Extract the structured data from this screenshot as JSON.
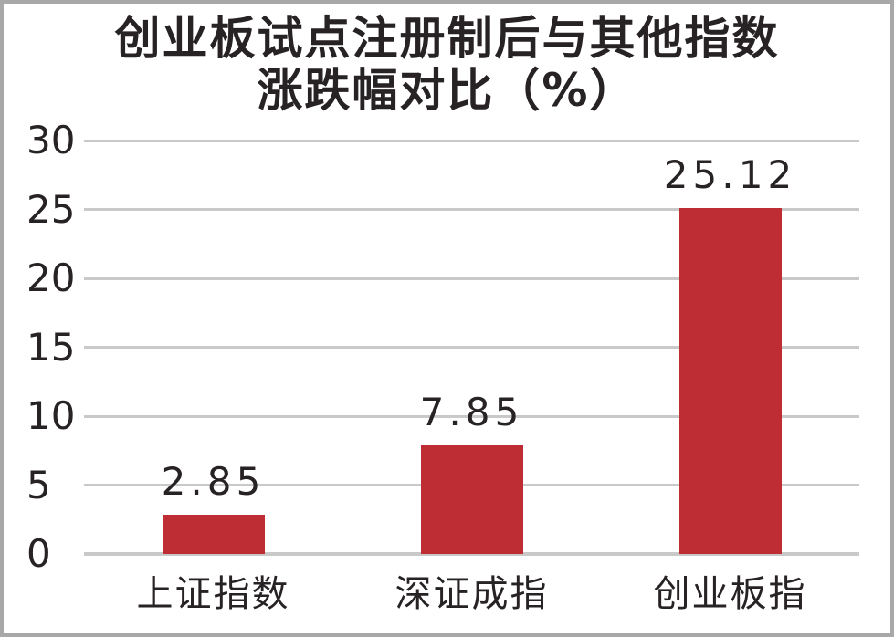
{
  "chart": {
    "title_line1": "创业板试点注册制后与其他指数",
    "title_line2": "涨跌幅对比（%）"
  },
  "chart_data": {
    "type": "bar",
    "title": "创业板试点注册制后与其他指数涨跌幅对比（%）",
    "categories": [
      "上证指数",
      "深证成指",
      "创业板指"
    ],
    "values": [
      2.85,
      7.85,
      25.12
    ],
    "value_labels": [
      "2.85",
      "7.85",
      "25.12"
    ],
    "xlabel": "",
    "ylabel": "",
    "ylim": [
      0,
      30
    ],
    "yticks": [
      0,
      5,
      10,
      15,
      20,
      25,
      30
    ],
    "grid": "horizontal",
    "legend": "none",
    "bar_color": "#be2d34",
    "gridline_color": "#c9c9c9",
    "text_color": "#272223",
    "frame_border_color": "#a8a8a8"
  }
}
